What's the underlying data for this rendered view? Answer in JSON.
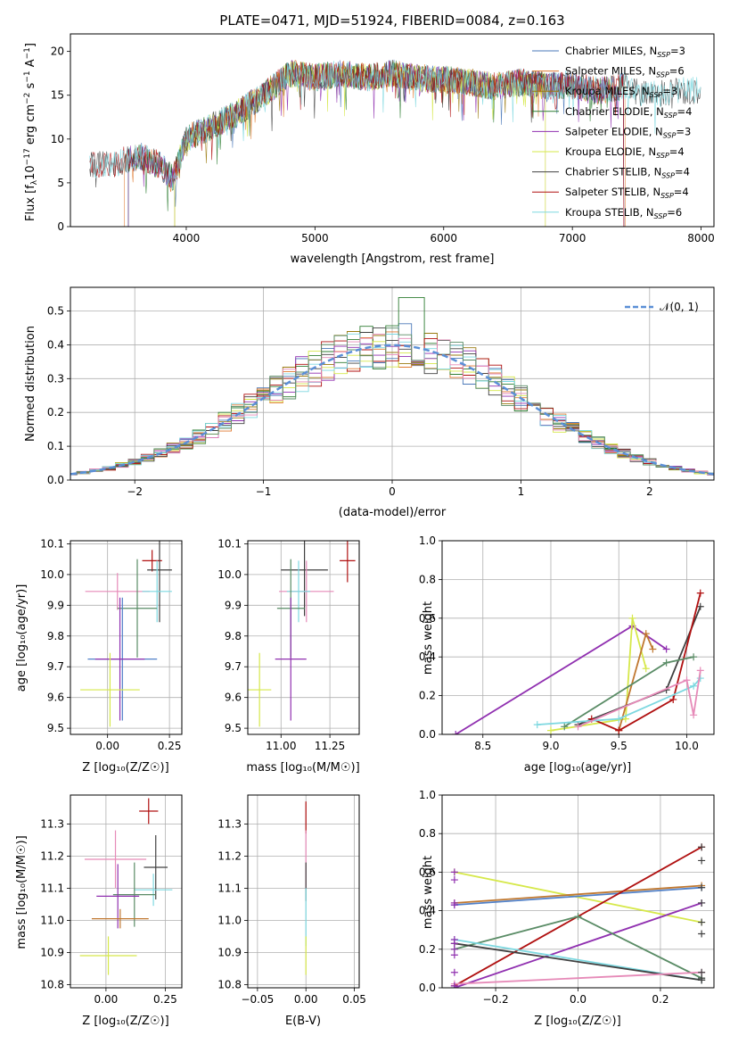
{
  "colors": {
    "chabrier_miles": "#4a78b8",
    "salpeter_miles": "#e07a30",
    "kroupa_miles": "#9a7a10",
    "chabrier_elodie": "#2e7d32",
    "salpeter_elodie": "#9030b0",
    "kroupa_elodie": "#d6e84a",
    "chabrier_stelib": "#404040",
    "salpeter_stelib": "#b01010",
    "kroupa_stelib": "#7dd8e0",
    "model_pink": "#e68ab8",
    "model_green": "#5a8c66",
    "model_brown": "#c07830",
    "model_blue": "#5080c8"
  },
  "chart_data": [
    {
      "type": "line",
      "title": "PLATE=0471, MJD=51924, FIBERID=0084, z=0.163",
      "xlabel": "wavelength [Angstrom, rest frame]",
      "ylabel_main": "Flux [f",
      "ylabel_sub": "λ",
      "ylabel_mid": "10",
      "ylabel_sup1": "−17",
      "ylabel_rest": " erg cm",
      "ylabel_sup2": "−2",
      "ylabel_s": " s",
      "ylabel_sup3": "−1",
      "ylabel_end": " A",
      "ylabel_sup4": "−1",
      "ylabel_close": "]",
      "xlim": [
        3100,
        8100
      ],
      "ylim": [
        0,
        22
      ],
      "xticks": [
        "4000",
        "5000",
        "6000",
        "7000",
        "8000"
      ],
      "yticks": [
        "0",
        "5",
        "10",
        "15",
        "20"
      ],
      "legend": [
        {
          "name": "Chabrier MILES, N",
          "sub": "SSP",
          "val": "=3"
        },
        {
          "name": "Salpeter MILES, N",
          "sub": "SSP",
          "val": "=6"
        },
        {
          "name": "Kroupa MILES, N",
          "sub": "SSP",
          "val": "=3"
        },
        {
          "name": "Chabrier ELODIE, N",
          "sub": "SSP",
          "val": "=4"
        },
        {
          "name": "Salpeter ELODIE, N",
          "sub": "SSP",
          "val": "=3"
        },
        {
          "name": "Kroupa ELODIE, N",
          "sub": "SSP",
          "val": "=4"
        },
        {
          "name": "Chabrier STELIB, N",
          "sub": "SSP",
          "val": "=4"
        },
        {
          "name": "Salpeter STELIB, N",
          "sub": "SSP",
          "val": "=4"
        },
        {
          "name": "Kroupa STELIB, N",
          "sub": "SSP",
          "val": "=6"
        }
      ],
      "continuum": [
        [
          3250,
          7.2
        ],
        [
          3400,
          7.0
        ],
        [
          3500,
          7.5
        ],
        [
          3650,
          8.0
        ],
        [
          3800,
          7.0
        ],
        [
          3900,
          5.5
        ],
        [
          4000,
          10.0
        ],
        [
          4200,
          11.5
        ],
        [
          4400,
          13.0
        ],
        [
          4600,
          15.0
        ],
        [
          4800,
          17.5
        ],
        [
          5000,
          17.0
        ],
        [
          5200,
          17.5
        ],
        [
          5400,
          17.0
        ],
        [
          5600,
          17.5
        ],
        [
          5800,
          17.0
        ],
        [
          6000,
          16.8
        ],
        [
          6200,
          16.5
        ],
        [
          6400,
          16.0
        ],
        [
          6600,
          16.5
        ],
        [
          6800,
          16.0
        ],
        [
          7000,
          16.2
        ],
        [
          7200,
          15.5
        ],
        [
          7400,
          16.0
        ],
        [
          7600,
          15.0
        ],
        [
          7800,
          15.5
        ],
        [
          8000,
          15.5
        ]
      ]
    },
    {
      "type": "line",
      "xlabel": "(data-model)/error",
      "ylabel": "Normed distribution",
      "xlim": [
        -2.5,
        2.5
      ],
      "ylim": [
        0,
        0.57
      ],
      "xticks": [
        "−2",
        "−1",
        "0",
        "1",
        "2"
      ],
      "yticks": [
        "0.0",
        "0.1",
        "0.2",
        "0.3",
        "0.4",
        "0.5"
      ],
      "legend_label": "𝒩(0, 1)",
      "bin_width": 0.1
    },
    {
      "type": "scatter",
      "xlabel": "Z [log₁₀(Z/Z☉)]",
      "ylabel": "age  [log₁₀(age/yr)]",
      "xlim": [
        -0.15,
        0.3
      ],
      "ylim": [
        9.48,
        10.11
      ],
      "xticks": [
        "0.00",
        "0.25"
      ],
      "yticks": [
        "9.5",
        "9.6",
        "9.7",
        "9.8",
        "9.9",
        "10.0",
        "10.1"
      ],
      "points": [
        {
          "x": 0.18,
          "y": 10.045,
          "ex": 0.04,
          "ey": 0.035,
          "c": "salpeter_stelib"
        },
        {
          "x": 0.21,
          "y": 10.015,
          "ex": 0.05,
          "ey": 0.17,
          "c": "chabrier_stelib"
        },
        {
          "x": 0.04,
          "y": 9.945,
          "ex": 0.13,
          "ey": 0.06,
          "c": "model_pink"
        },
        {
          "x": 0.2,
          "y": 9.945,
          "ex": 0.06,
          "ey": 0.1,
          "c": "kroupa_stelib"
        },
        {
          "x": 0.12,
          "y": 9.89,
          "ex": 0.08,
          "ey": 0.16,
          "c": "model_green"
        },
        {
          "x": 0.06,
          "y": 9.725,
          "ex": 0.14,
          "ey": 0.2,
          "c": "model_blue"
        },
        {
          "x": 0.05,
          "y": 9.725,
          "ex": 0.1,
          "ey": 0.2,
          "c": "salpeter_elodie"
        },
        {
          "x": 0.01,
          "y": 9.625,
          "ex": 0.12,
          "ey": 0.12,
          "c": "kroupa_elodie"
        }
      ]
    },
    {
      "type": "scatter",
      "xlabel": "mass [log₁₀(M/M☉)]",
      "xlim": [
        10.83,
        11.4
      ],
      "ylim": [
        9.48,
        10.11
      ],
      "xticks": [
        "11.00",
        "11.25"
      ],
      "yticks": [
        "9.5",
        "9.6",
        "9.7",
        "9.8",
        "9.9",
        "10.0",
        "10.1"
      ],
      "points": [
        {
          "x": 11.34,
          "y": 10.045,
          "ex": 0.04,
          "ey": 0.07,
          "c": "salpeter_stelib"
        },
        {
          "x": 11.12,
          "y": 10.015,
          "ex": 0.12,
          "ey": 0.15,
          "c": "chabrier_stelib"
        },
        {
          "x": 11.13,
          "y": 9.945,
          "ex": 0.14,
          "ey": 0.1,
          "c": "model_pink"
        },
        {
          "x": 11.09,
          "y": 9.945,
          "ex": 0.06,
          "ey": 0.1,
          "c": "kroupa_stelib"
        },
        {
          "x": 11.05,
          "y": 9.89,
          "ex": 0.07,
          "ey": 0.16,
          "c": "model_green"
        },
        {
          "x": 11.05,
          "y": 9.725,
          "ex": 0.08,
          "ey": 0.2,
          "c": "salpeter_elodie"
        },
        {
          "x": 10.89,
          "y": 9.625,
          "ex": 0.06,
          "ey": 0.12,
          "c": "kroupa_elodie"
        }
      ]
    },
    {
      "type": "line",
      "xlabel": "age  [log₁₀(age/yr)]",
      "ylabel": "mass weight",
      "xlim": [
        8.2,
        10.2
      ],
      "ylim": [
        0,
        1
      ],
      "xticks": [
        "8.5",
        "9.0",
        "9.5",
        "10.0"
      ],
      "yticks": [
        "0.0",
        "0.2",
        "0.4",
        "0.6",
        "0.8",
        "1.0"
      ],
      "series": [
        {
          "c": "salpeter_elodie",
          "pts": [
            [
              8.3,
              0.0
            ],
            [
              9.6,
              0.56
            ],
            [
              9.85,
              0.44
            ]
          ]
        },
        {
          "c": "kroupa_elodie",
          "pts": [
            [
              9.0,
              0.02
            ],
            [
              9.55,
              0.08
            ],
            [
              9.6,
              0.6
            ],
            [
              9.7,
              0.34
            ]
          ]
        },
        {
          "c": "model_brown",
          "pts": [
            [
              9.5,
              0.02
            ],
            [
              9.7,
              0.52
            ],
            [
              9.75,
              0.44
            ]
          ]
        },
        {
          "c": "chabrier_stelib",
          "pts": [
            [
              9.2,
              0.05
            ],
            [
              9.85,
              0.23
            ],
            [
              10.1,
              0.66
            ]
          ]
        },
        {
          "c": "salpeter_stelib",
          "pts": [
            [
              9.3,
              0.08
            ],
            [
              9.5,
              0.02
            ],
            [
              9.9,
              0.18
            ],
            [
              10.1,
              0.73
            ]
          ]
        },
        {
          "c": "model_green",
          "pts": [
            [
              9.1,
              0.04
            ],
            [
              9.85,
              0.37
            ],
            [
              10.05,
              0.4
            ]
          ]
        },
        {
          "c": "kroupa_stelib",
          "pts": [
            [
              8.9,
              0.05
            ],
            [
              9.5,
              0.08
            ],
            [
              10.05,
              0.25
            ],
            [
              10.1,
              0.29
            ]
          ]
        },
        {
          "c": "model_pink",
          "pts": [
            [
              9.2,
              0.04
            ],
            [
              10.0,
              0.28
            ],
            [
              10.05,
              0.1
            ],
            [
              10.1,
              0.33
            ]
          ]
        }
      ]
    },
    {
      "type": "scatter",
      "xlabel": "Z [log₁₀(Z/Z☉)]",
      "ylabel": "mass [log₁₀(M/M☉)]",
      "xlim": [
        -0.15,
        0.32
      ],
      "ylim": [
        10.79,
        11.39
      ],
      "xticks": [
        "0.00",
        "0.25"
      ],
      "yticks": [
        "10.8",
        "10.9",
        "11.0",
        "11.1",
        "11.2",
        "11.3"
      ],
      "points": [
        {
          "x": 0.18,
          "y": 11.34,
          "ex": 0.04,
          "ey": 0.04,
          "c": "salpeter_stelib"
        },
        {
          "x": 0.04,
          "y": 11.19,
          "ex": 0.13,
          "ey": 0.09,
          "c": "model_pink"
        },
        {
          "x": 0.21,
          "y": 11.165,
          "ex": 0.05,
          "ey": 0.1,
          "c": "chabrier_stelib"
        },
        {
          "x": 0.2,
          "y": 11.095,
          "ex": 0.08,
          "ey": 0.05,
          "c": "kroupa_stelib"
        },
        {
          "x": 0.12,
          "y": 11.08,
          "ex": 0.09,
          "ey": 0.1,
          "c": "model_green"
        },
        {
          "x": 0.05,
          "y": 11.075,
          "ex": 0.09,
          "ey": 0.1,
          "c": "salpeter_elodie"
        },
        {
          "x": 0.06,
          "y": 11.005,
          "ex": 0.12,
          "ey": 0.03,
          "c": "model_brown"
        },
        {
          "x": 0.01,
          "y": 10.89,
          "ex": 0.12,
          "ey": 0.06,
          "c": "kroupa_elodie"
        }
      ]
    },
    {
      "type": "scatter",
      "xlabel": "E(B-V)",
      "xlim": [
        -0.06,
        0.055
      ],
      "ylim": [
        10.79,
        11.39
      ],
      "xticks": [
        "−0.05",
        "0.00",
        "0.05"
      ],
      "yticks": [
        "10.8",
        "10.9",
        "11.0",
        "11.1",
        "11.2",
        "11.3"
      ],
      "vbars": [
        {
          "y0": 11.27,
          "y1": 11.37,
          "c": "salpeter_stelib"
        },
        {
          "y0": 11.1,
          "y1": 11.28,
          "c": "model_pink"
        },
        {
          "y0": 11.06,
          "y1": 11.18,
          "c": "chabrier_stelib"
        },
        {
          "y0": 10.92,
          "y1": 11.1,
          "c": "kroupa_stelib"
        },
        {
          "y0": 10.83,
          "y1": 10.95,
          "c": "kroupa_elodie"
        }
      ]
    },
    {
      "type": "line",
      "xlabel": "Z [log₁₀(Z/Z☉)]",
      "ylabel": "mass weight",
      "xlim": [
        -0.33,
        0.33
      ],
      "ylim": [
        0,
        1
      ],
      "xticks": [
        "−0.2",
        "0.0",
        "0.2"
      ],
      "yticks": [
        "0.0",
        "0.2",
        "0.4",
        "0.6",
        "0.8",
        "1.0"
      ],
      "series": [
        {
          "c": "kroupa_elodie",
          "pts": [
            [
              -0.3,
              0.6
            ],
            [
              0.3,
              0.34
            ]
          ]
        },
        {
          "c": "model_brown",
          "pts": [
            [
              -0.3,
              0.44
            ],
            [
              0.3,
              0.53
            ]
          ]
        },
        {
          "c": "model_blue",
          "pts": [
            [
              -0.3,
              0.43
            ],
            [
              0.3,
              0.52
            ]
          ]
        },
        {
          "c": "salpeter_stelib",
          "pts": [
            [
              -0.3,
              0.01
            ],
            [
              0.3,
              0.73
            ]
          ]
        },
        {
          "c": "salpeter_elodie",
          "pts": [
            [
              -0.3,
              0.0
            ],
            [
              0.3,
              0.44
            ]
          ]
        },
        {
          "c": "model_green",
          "pts": [
            [
              -0.3,
              0.2
            ],
            [
              0.0,
              0.37
            ],
            [
              0.3,
              0.05
            ]
          ]
        },
        {
          "c": "kroupa_stelib",
          "pts": [
            [
              -0.3,
              0.25
            ],
            [
              0.3,
              0.04
            ]
          ]
        },
        {
          "c": "chabrier_stelib",
          "pts": [
            [
              -0.3,
              0.23
            ],
            [
              0.3,
              0.04
            ]
          ]
        },
        {
          "c": "model_pink",
          "pts": [
            [
              -0.3,
              0.02
            ],
            [
              0.3,
              0.08
            ]
          ]
        }
      ],
      "end_markers": [
        {
          "x": -0.3,
          "ys": [
            0.01,
            0.08,
            0.17,
            0.2,
            0.23,
            0.25,
            0.43,
            0.44,
            0.56,
            0.6
          ],
          "c": "salpeter_elodie"
        },
        {
          "x": 0.3,
          "ys": [
            0.04,
            0.05,
            0.08,
            0.28,
            0.34,
            0.44,
            0.52,
            0.66,
            0.73
          ],
          "c": "chabrier_stelib"
        }
      ]
    }
  ]
}
